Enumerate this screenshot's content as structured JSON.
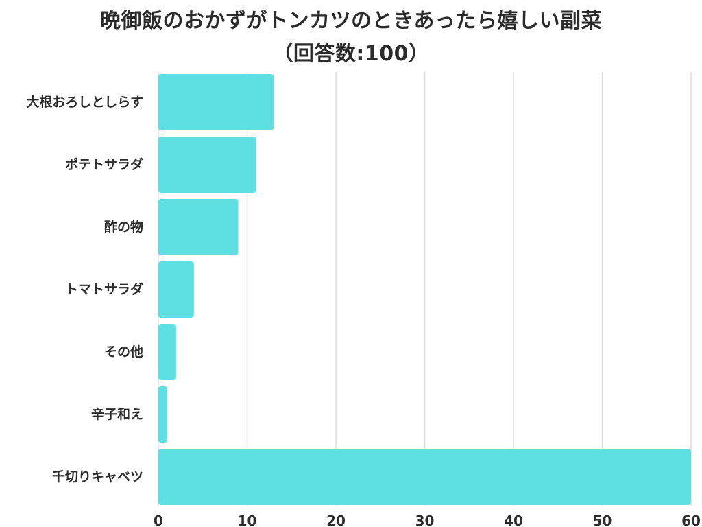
{
  "chart_data": {
    "type": "bar",
    "orientation": "horizontal",
    "title": "晩御飯のおかずがトンカツのときあったら嬉しい副菜",
    "subtitle": "（回答数:100）",
    "categories": [
      "大根おろしとしらす",
      "ポテトサラダ",
      "酢の物",
      "トマトサラダ",
      "その他",
      "辛子和え",
      "千切りキャベツ"
    ],
    "values": [
      13,
      11,
      9,
      4,
      2,
      1,
      60
    ],
    "xlim": [
      0,
      60
    ],
    "xticks": [
      "0",
      "10",
      "20",
      "30",
      "40",
      "50",
      "60"
    ],
    "grid": true,
    "bar_color": "#5ee0e3",
    "xlabel": "",
    "ylabel": ""
  }
}
